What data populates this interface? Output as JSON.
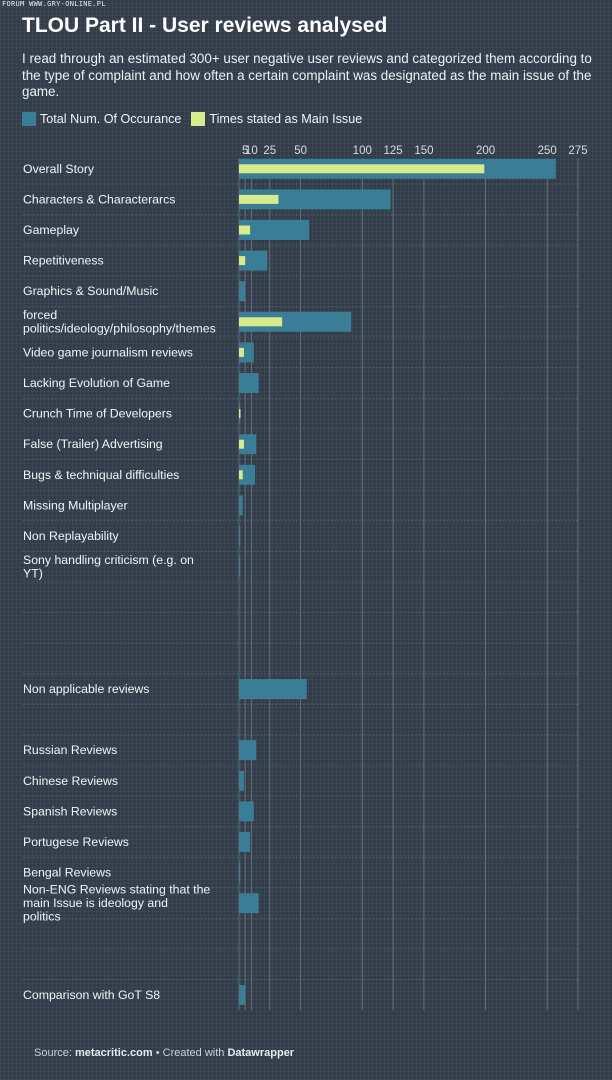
{
  "watermark": "FORUM WWW.GRY-ONLINE.PL",
  "title": "TLOU Part II - User reviews analysed",
  "subtitle": "I read through an estimated 300+ user negative user reviews and categorized them according to the type of complaint and how often a certain complaint was designated as the main issue of the game.",
  "colors": {
    "total": "#3a7d96",
    "main": "#d8eb8c",
    "background": "#333d4a",
    "gridline": "#6f7a87"
  },
  "footer": {
    "source_label": "Source:",
    "source_name": "metacritic.com",
    "separator": "•",
    "created_label": "Created with",
    "tool_name": "Datawrapper"
  },
  "chart_data": {
    "type": "bar",
    "orientation": "horizontal",
    "xlim": [
      0,
      275
    ],
    "xticks": [
      "5",
      "10",
      "25",
      "50",
      "100",
      "125",
      "150",
      "200",
      "250",
      "275"
    ],
    "tick_values": [
      5,
      10,
      25,
      50,
      100,
      125,
      150,
      200,
      250,
      275
    ],
    "categories": [
      "Overall Story",
      "Characters & Characterarcs",
      "Gameplay",
      "Repetitiveness",
      "Graphics & Sound/Music",
      "forced politics/ideology/philosophy/themes",
      "Video game journalism reviews",
      "Lacking Evolution of Game",
      "Crunch Time of Developers",
      "False (Trailer) Advertising",
      "Bugs & techniqual difficulties",
      "Missing Multiplayer",
      "Non Replayability",
      "Sony handling criticism (e.g. on YT)",
      "",
      "",
      "",
      "Non applicable reviews",
      "",
      "Russian Reviews",
      "Chinese Reviews",
      "Spanish Reviews",
      "Portugese Reviews",
      "Bengal Reviews",
      "Non-ENG Reviews stating that the main Issue is ideology and politics",
      "",
      "",
      "Comparison with GoT S8"
    ],
    "series": [
      {
        "name": "Total Num. Of Occurance",
        "values": [
          257,
          123,
          57,
          23,
          5,
          91,
          12,
          16,
          1,
          14,
          13,
          3,
          1,
          1,
          null,
          null,
          null,
          55,
          null,
          14,
          4,
          12,
          9,
          1,
          16,
          null,
          null,
          5
        ]
      },
      {
        "name": "Times stated as Main Issue",
        "values": [
          199,
          32,
          9,
          5,
          0,
          35,
          4,
          0,
          1,
          4,
          3,
          0,
          0,
          0,
          null,
          null,
          null,
          0,
          null,
          0,
          0,
          0,
          0,
          0,
          0,
          null,
          null,
          0
        ]
      }
    ],
    "grid": true,
    "legend": "top-left"
  }
}
